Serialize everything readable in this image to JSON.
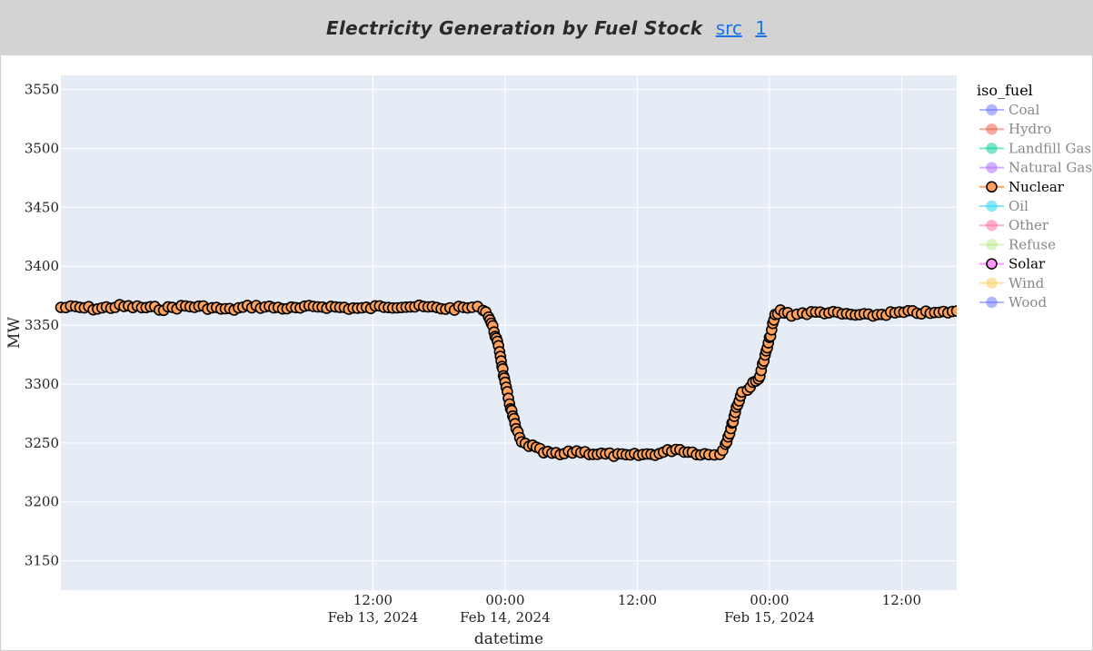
{
  "header": {
    "title": "Electricity Generation by Fuel Stock",
    "links": [
      "src",
      "1"
    ]
  },
  "chart_data": {
    "type": "scatter",
    "mode": "lines+markers",
    "xlabel": "datetime",
    "ylabel": "MW",
    "ylim": [
      3125,
      3562
    ],
    "xlim": [
      "2024-02-12 07:40",
      "2024-02-15 17:00"
    ],
    "yticks": [
      3150,
      3200,
      3250,
      3300,
      3350,
      3400,
      3450,
      3500,
      3550
    ],
    "xticks": [
      {
        "t": "2024-02-13 12:00",
        "line1": "12:00",
        "line2": "Feb 13, 2024"
      },
      {
        "t": "2024-02-14 00:00",
        "line1": "00:00",
        "line2": "Feb 14, 2024"
      },
      {
        "t": "2024-02-14 12:00",
        "line1": "12:00",
        "line2": ""
      },
      {
        "t": "2024-02-15 00:00",
        "line1": "00:00",
        "line2": "Feb 15, 2024"
      },
      {
        "t": "2024-02-15 12:00",
        "line1": "12:00",
        "line2": ""
      }
    ],
    "grid": true,
    "plot_bgcolor": "#e5ecf6",
    "legend": {
      "title": "iso_fuel",
      "placement": "right",
      "items": [
        {
          "name": "Coal",
          "color": "#636efa",
          "active": false
        },
        {
          "name": "Hydro",
          "color": "#ef553b",
          "active": false
        },
        {
          "name": "Landfill Gas",
          "color": "#00cc96",
          "active": false
        },
        {
          "name": "Natural Gas",
          "color": "#ab63fa",
          "active": false
        },
        {
          "name": "Nuclear",
          "color": "#ffa15a",
          "active": true
        },
        {
          "name": "Oil",
          "color": "#19d3f3",
          "active": false
        },
        {
          "name": "Other",
          "color": "#ff6692",
          "active": false
        },
        {
          "name": "Refuse",
          "color": "#b6e880",
          "active": false
        },
        {
          "name": "Solar",
          "color": "#ff97ff",
          "active": true
        },
        {
          "name": "Wind",
          "color": "#fecb52",
          "active": false
        },
        {
          "name": "Wood",
          "color": "#636efa",
          "active": false
        }
      ]
    },
    "series": [
      {
        "name": "Nuclear",
        "color": "#ffa15a",
        "points": [
          [
            "2024-02-12 07:40",
            3365
          ],
          [
            "2024-02-12 09:00",
            3365
          ],
          [
            "2024-02-12 11:00",
            3364
          ],
          [
            "2024-02-12 13:00",
            3366
          ],
          [
            "2024-02-12 15:00",
            3365
          ],
          [
            "2024-02-12 17:00",
            3364
          ],
          [
            "2024-02-12 19:00",
            3366
          ],
          [
            "2024-02-12 21:00",
            3365
          ],
          [
            "2024-02-12 23:00",
            3363
          ],
          [
            "2024-02-13 01:00",
            3366
          ],
          [
            "2024-02-13 03:00",
            3365
          ],
          [
            "2024-02-13 05:00",
            3364
          ],
          [
            "2024-02-13 07:00",
            3366
          ],
          [
            "2024-02-13 09:00",
            3365
          ],
          [
            "2024-02-13 11:00",
            3364
          ],
          [
            "2024-02-13 13:00",
            3366
          ],
          [
            "2024-02-13 15:00",
            3366
          ],
          [
            "2024-02-13 17:00",
            3365
          ],
          [
            "2024-02-13 19:00",
            3364
          ],
          [
            "2024-02-13 21:00",
            3365
          ],
          [
            "2024-02-13 22:00",
            3364
          ],
          [
            "2024-02-13 22:30",
            3358
          ],
          [
            "2024-02-13 23:00",
            3345
          ],
          [
            "2024-02-13 23:30",
            3328
          ],
          [
            "2024-02-14 00:00",
            3300
          ],
          [
            "2024-02-14 00:30",
            3280
          ],
          [
            "2024-02-14 01:00",
            3262
          ],
          [
            "2024-02-14 01:30",
            3250
          ],
          [
            "2024-02-14 02:30",
            3247
          ],
          [
            "2024-02-14 03:30",
            3242
          ],
          [
            "2024-02-14 05:00",
            3240
          ],
          [
            "2024-02-14 06:30",
            3243
          ],
          [
            "2024-02-14 08:00",
            3241
          ],
          [
            "2024-02-14 09:30",
            3240
          ],
          [
            "2024-02-14 11:00",
            3239
          ],
          [
            "2024-02-14 12:30",
            3240
          ],
          [
            "2024-02-14 14:00",
            3241
          ],
          [
            "2024-02-14 15:30",
            3245
          ],
          [
            "2024-02-14 17:00",
            3242
          ],
          [
            "2024-02-14 18:30",
            3240
          ],
          [
            "2024-02-14 19:30",
            3241
          ],
          [
            "2024-02-14 20:00",
            3249
          ],
          [
            "2024-02-14 20:30",
            3262
          ],
          [
            "2024-02-14 21:00",
            3280
          ],
          [
            "2024-02-14 21:30",
            3293
          ],
          [
            "2024-02-14 22:00",
            3296
          ],
          [
            "2024-02-14 22:30",
            3300
          ],
          [
            "2024-02-14 23:00",
            3304
          ],
          [
            "2024-02-14 23:30",
            3320
          ],
          [
            "2024-02-15 00:00",
            3338
          ],
          [
            "2024-02-15 00:30",
            3358
          ],
          [
            "2024-02-15 01:00",
            3362
          ],
          [
            "2024-02-15 02:00",
            3359
          ],
          [
            "2024-02-15 03:00",
            3360
          ],
          [
            "2024-02-15 05:00",
            3361
          ],
          [
            "2024-02-15 07:00",
            3359
          ],
          [
            "2024-02-15 09:00",
            3358
          ],
          [
            "2024-02-15 11:00",
            3360
          ],
          [
            "2024-02-15 13:00",
            3361
          ],
          [
            "2024-02-15 15:00",
            3360
          ],
          [
            "2024-02-15 17:00",
            3362
          ]
        ]
      }
    ]
  }
}
